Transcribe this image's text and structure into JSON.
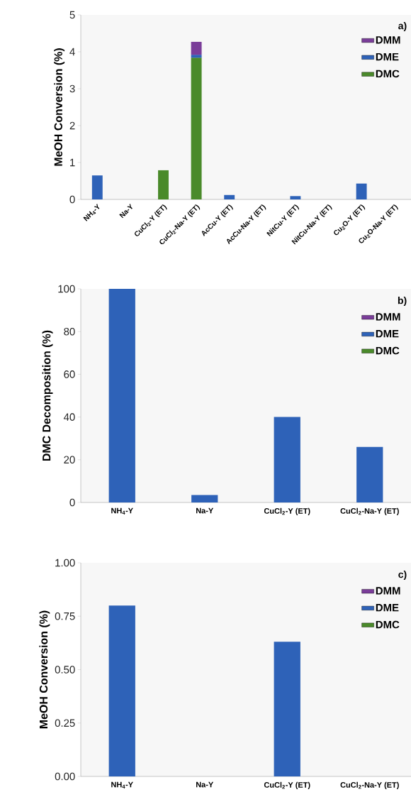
{
  "chart_data": [
    {
      "type": "bar",
      "stacked": true,
      "ylabel": "MeOH Conversion (%)",
      "annotations": [
        "a)"
      ],
      "legend": "top right",
      "categories": [
        "NH$_{4}$-Y",
        "Na-Y",
        "CuCl$_{2}$-Y (ET)",
        "CuCl$_{2}$-Na-Y (ET)",
        "AcCu-Y (ET)",
        "AcCu-Na-Y (ET)",
        "NitCu-Y (ET)",
        "NitCu-Na-Y (ET)",
        "Cu$_{2}$O-Y (ET)",
        "Cu$_{2}$O-Na-Y (ET)"
      ],
      "series": [
        {
          "name": "DMC",
          "color": "#4a8a2a",
          "values": [
            null,
            null,
            0.79,
            3.84,
            null,
            null,
            null,
            null,
            null,
            null
          ]
        },
        {
          "name": "DME",
          "color": "#2e62b8",
          "values": [
            0.65,
            null,
            null,
            0.08,
            0.12,
            null,
            0.09,
            null,
            0.43,
            null
          ]
        },
        {
          "name": "DMM",
          "color": "#7a3d99",
          "values": [
            null,
            null,
            null,
            0.35,
            null,
            null,
            null,
            null,
            null,
            null
          ]
        }
      ],
      "ylim": [
        0,
        5
      ],
      "yticks": [
        0,
        1,
        2,
        3,
        4,
        5
      ]
    },
    {
      "type": "bar",
      "stacked": true,
      "ylabel": "DMC Decomposition (%)",
      "annotations": [
        "b)"
      ],
      "legend": "top right",
      "categories": [
        "NH$_{4}$-Y",
        "Na-Y",
        "CuCl$_{2}$-Y (ET)",
        "CuCl$_{2}$-Na-Y (ET)"
      ],
      "series": [
        {
          "name": "DMC",
          "color": "#4a8a2a",
          "values": [
            null,
            null,
            null,
            null
          ]
        },
        {
          "name": "DME",
          "color": "#2e62b8",
          "values": [
            100,
            3.5,
            40,
            26
          ]
        },
        {
          "name": "DMM",
          "color": "#7a3d99",
          "values": [
            null,
            null,
            null,
            null
          ]
        }
      ],
      "ylim": [
        0,
        100
      ],
      "yticks": [
        0,
        20,
        40,
        60,
        80,
        100
      ]
    },
    {
      "type": "bar",
      "stacked": true,
      "ylabel": "MeOH Conversion (%)",
      "annotations": [
        "c)"
      ],
      "legend": "top right",
      "categories": [
        "NH$_{4}$-Y",
        "Na-Y",
        "CuCl$_{2}$-Y (ET)",
        "CuCl$_{2}$-Na-Y (ET)"
      ],
      "series": [
        {
          "name": "DMC",
          "color": "#4a8a2a",
          "values": [
            null,
            null,
            null,
            null
          ]
        },
        {
          "name": "DME",
          "color": "#2e62b8",
          "values": [
            0.8,
            null,
            0.63,
            null
          ]
        },
        {
          "name": "DMM",
          "color": "#7a3d99",
          "values": [
            null,
            null,
            null,
            null
          ]
        }
      ],
      "ylim": [
        0,
        1
      ],
      "yticks": [
        {
          "value": 0,
          "label": "0.00"
        },
        {
          "value": 0.25,
          "label": "0.25"
        },
        {
          "value": 0.5,
          "label": "0.50"
        },
        {
          "value": 0.75,
          "label": "0.75"
        },
        {
          "value": 1,
          "label": "1.00"
        }
      ]
    }
  ]
}
